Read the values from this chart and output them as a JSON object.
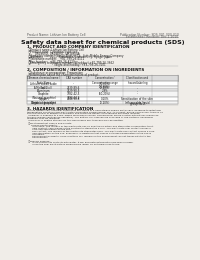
{
  "bg_color": "#f0ede8",
  "header_left": "Product Name: Lithium Ion Battery Cell",
  "header_right1": "Publication Number: SDS-001-000-010",
  "header_right2": "Established / Revision: Dec.1 2010",
  "title": "Safety data sheet for chemical products (SDS)",
  "section1_title": "1. PRODUCT AND COMPANY IDENTIFICATION",
  "section1_lines": [
    "  ・Product name: Lithium Ion Battery Cell",
    "  ・Product code: Cylindrical-type cell",
    "         UR18650J, UR18650L, UR18650A",
    "  ・Company name:    Sanyo Electric Co., Ltd., Mobile Energy Company",
    "  ・Address:         2001  Kamiosaka, Sumoto-City, Hyogo, Japan",
    "  ・Telephone number:   +81-799-26-4111",
    "  ・Fax number:   +81-799-26-4123",
    "  ・Emergency telephone number (Weekday) +81-799-26-3662",
    "                               (Night and holiday) +81-799-26-3101"
  ],
  "section2_title": "2. COMPOSITION / INFORMATION ON INGREDIENTS",
  "section2_lines": [
    "  ・Substance or preparation: Preparation",
    "  ・Information about the chemical nature of product:"
  ],
  "table_col_labels": [
    "Common chemical name /\nTrade Name",
    "CAS number",
    "Concentration /\nConcentration range\n(20-65%)",
    "Classification and\nhazard labeling"
  ],
  "table_rows": [
    [
      "Lithium cobalt oxide\n(LiMnCoO2(x))",
      "-",
      "(30-60%)",
      "-"
    ],
    [
      "Iron",
      "7439-89-6",
      "(0-20%)",
      "-"
    ],
    [
      "Aluminum",
      "7429-90-5",
      "2.8%",
      "-"
    ],
    [
      "Graphite\n(Natural graphite)\n(Artificial graphite)",
      "7782-42-5\n7782-44-2",
      "(10-20%)",
      "-"
    ],
    [
      "Copper",
      "7440-50-8",
      "0-10%",
      "Sensitization of the skin\ngroup No.2"
    ],
    [
      "Organic electrolyte",
      "-",
      "(0-20%)",
      "Inflammable liquid"
    ]
  ],
  "section3_title": "3. HAZARDS IDENTIFICATION",
  "section3_body": [
    "For the battery cell, chemical substances are stored in a hermetically-sealed metal case, designed to withstand",
    "temperature variations and electrolyte-combustion during normal use. As a result, during normal use, there is no",
    "physical danger of ignition or explosion and therefore danger of hazardous materials leakage.",
    "  However, if exposed to a fire, added mechanical shocks, decomposed, where electric without any measures,",
    "the gas release vent(can be operated). The battery cell case will be breached or fire-portions, hazardous",
    "materials may be released.",
    "  Moreover, if heated strongly by the surrounding fire, toxic gas may be emitted.",
    "",
    "  ・Most important hazard and effects:",
    "     Human health effects:",
    "       Inhalation: The release of the electrolyte has an anesthesia action and stimulates a respiratory tract.",
    "       Skin contact: The release of the electrolyte stimulates a skin. The electrolyte skin contact causes a",
    "       sore and stimulation on the skin.",
    "       Eye contact: The release of the electrolyte stimulates eyes. The electrolyte eye contact causes a sore",
    "       and stimulation on the eye. Especially, a substance that causes a strong inflammation of the eye is",
    "       contained.",
    "       Environmental effects: Since a battery cell remains in the environment, do not throw out it into the",
    "       environment.",
    "",
    "  ・Specific hazards:",
    "       If the electrolyte contacts with water, it will generate detrimental hydrogen fluoride.",
    "       Since the seal electrolyte is inflammable liquid, do not bring close to fire."
  ]
}
